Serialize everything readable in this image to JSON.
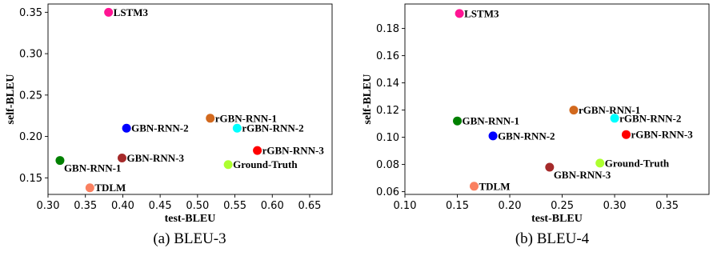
{
  "chart_data": [
    {
      "type": "scatter",
      "caption": "(a) BLEU-3",
      "xlabel": "test-BLEU",
      "ylabel": "self-BLEU",
      "xlim": [
        0.3,
        0.68
      ],
      "ylim": [
        0.13,
        0.36
      ],
      "xticks": [
        "0.30",
        "0.35",
        "0.40",
        "0.45",
        "0.50",
        "0.55",
        "0.60",
        "0.65"
      ],
      "xtick_values": [
        0.3,
        0.35,
        0.4,
        0.45,
        0.5,
        0.55,
        0.6,
        0.65
      ],
      "yticks": [
        "0.15",
        "0.20",
        "0.25",
        "0.30",
        "0.35"
      ],
      "ytick_values": [
        0.15,
        0.2,
        0.25,
        0.3,
        0.35
      ],
      "grid": false,
      "points": [
        {
          "label": "LSTM3",
          "x": 0.381,
          "y": 0.35,
          "color": "#ff1493",
          "label_pos": "right"
        },
        {
          "label": "GBN-RNN-2",
          "x": 0.405,
          "y": 0.21,
          "color": "#0000ff",
          "label_pos": "right"
        },
        {
          "label": "rGBN-RNN-1",
          "x": 0.517,
          "y": 0.222,
          "color": "#d2691e",
          "label_pos": "right"
        },
        {
          "label": "rGBN-RNN-2",
          "x": 0.553,
          "y": 0.21,
          "color": "#00ffff",
          "label_pos": "right"
        },
        {
          "label": "rGBN-RNN-3",
          "x": 0.58,
          "y": 0.183,
          "color": "#ff0000",
          "label_pos": "right"
        },
        {
          "label": "GBN-RNN-3",
          "x": 0.399,
          "y": 0.174,
          "color": "#a52a2a",
          "label_pos": "right"
        },
        {
          "label": "GBN-RNN-1",
          "x": 0.316,
          "y": 0.171,
          "color": "#008000",
          "label_pos": "below-right"
        },
        {
          "label": "Ground-Truth",
          "x": 0.541,
          "y": 0.166,
          "color": "#adff2f",
          "label_pos": "right"
        },
        {
          "label": "TDLM",
          "x": 0.356,
          "y": 0.138,
          "color": "#fa8060",
          "label_pos": "right"
        }
      ]
    },
    {
      "type": "scatter",
      "caption": "(b) BLEU-4",
      "xlabel": "test-BLEU",
      "ylabel": "self-BLEU",
      "xlim": [
        0.1,
        0.39
      ],
      "ylim": [
        0.058,
        0.198
      ],
      "xticks": [
        "0.10",
        "0.15",
        "0.20",
        "0.25",
        "0.30",
        "0.35"
      ],
      "xtick_values": [
        0.1,
        0.15,
        0.2,
        0.25,
        0.3,
        0.35
      ],
      "yticks": [
        "0.06",
        "0.08",
        "0.10",
        "0.12",
        "0.14",
        "0.16",
        "0.18"
      ],
      "ytick_values": [
        0.06,
        0.08,
        0.1,
        0.12,
        0.14,
        0.16,
        0.18
      ],
      "grid": false,
      "points": [
        {
          "label": "LSTM3",
          "x": 0.152,
          "y": 0.191,
          "color": "#ff1493",
          "label_pos": "right"
        },
        {
          "label": "rGBN-RNN-1",
          "x": 0.261,
          "y": 0.12,
          "color": "#d2691e",
          "label_pos": "right"
        },
        {
          "label": "rGBN-RNN-2",
          "x": 0.3,
          "y": 0.114,
          "color": "#00ffff",
          "label_pos": "right"
        },
        {
          "label": "GBN-RNN-1",
          "x": 0.15,
          "y": 0.112,
          "color": "#008000",
          "label_pos": "right"
        },
        {
          "label": "rGBN-RNN-3",
          "x": 0.311,
          "y": 0.102,
          "color": "#ff0000",
          "label_pos": "right"
        },
        {
          "label": "GBN-RNN-2",
          "x": 0.184,
          "y": 0.101,
          "color": "#0000ff",
          "label_pos": "right"
        },
        {
          "label": "Ground-Truth",
          "x": 0.286,
          "y": 0.081,
          "color": "#adff2f",
          "label_pos": "right"
        },
        {
          "label": "GBN-RNN-3",
          "x": 0.238,
          "y": 0.078,
          "color": "#a52a2a",
          "label_pos": "below-right"
        },
        {
          "label": "TDLM",
          "x": 0.166,
          "y": 0.064,
          "color": "#fa8060",
          "label_pos": "right"
        }
      ]
    }
  ]
}
